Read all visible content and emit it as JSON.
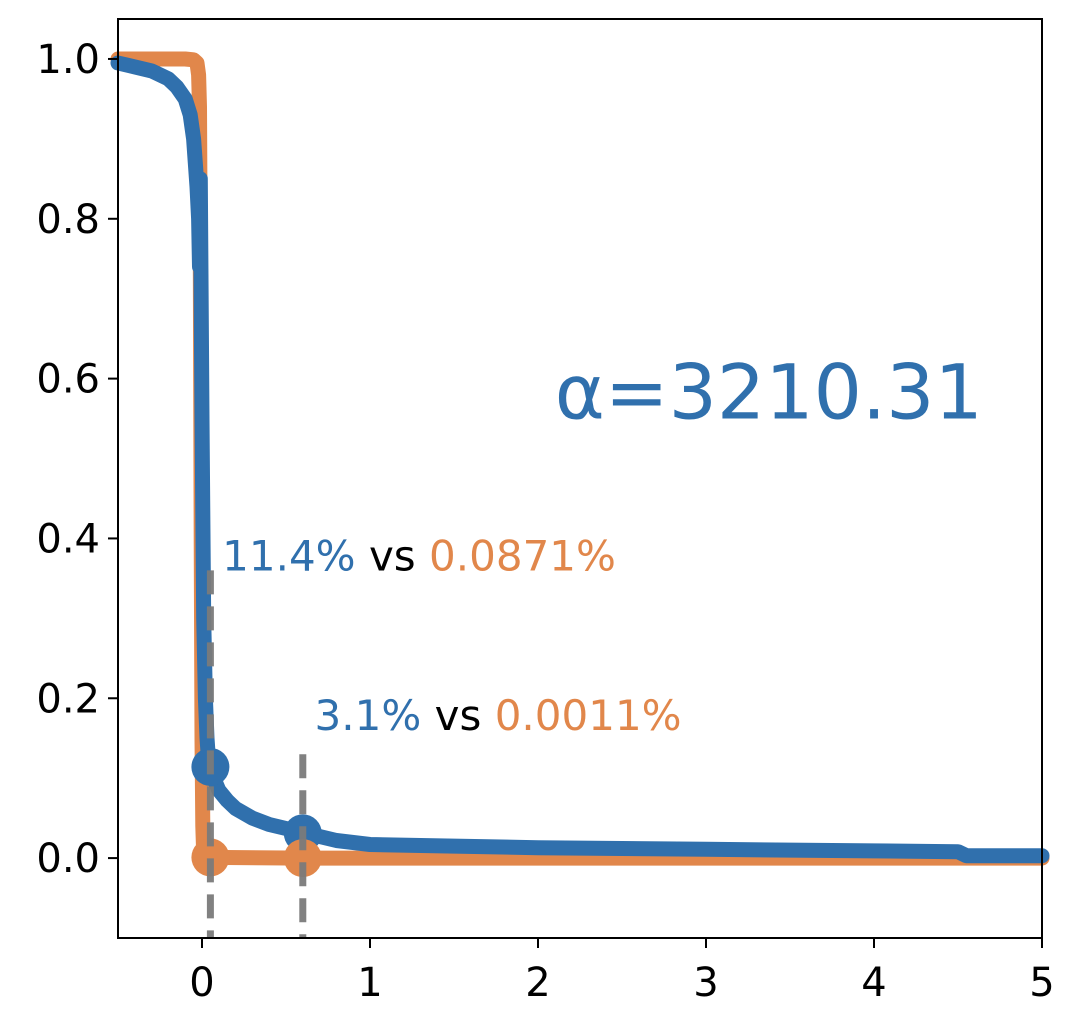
{
  "chart_data": {
    "type": "line",
    "title": "",
    "xlabel": "",
    "ylabel": "",
    "xlim": [
      -0.5,
      5
    ],
    "ylim": [
      -0.1,
      1.05
    ],
    "grid": false,
    "x_ticks": [
      0,
      1,
      2,
      3,
      4,
      5
    ],
    "x_tick_labels": [
      "0",
      "1",
      "2",
      "3",
      "4",
      "5"
    ],
    "y_ticks": [
      0.0,
      0.2,
      0.4,
      0.6,
      0.8,
      1.0
    ],
    "y_tick_labels": [
      "0.0",
      "0.2",
      "0.4",
      "0.6",
      "0.8",
      "1.0"
    ],
    "colors": {
      "blue": "#3070ad",
      "orange": "#e1874b",
      "dashed": "#7a7a7a"
    },
    "series": [
      {
        "color": "#3070ad",
        "x": [
          -0.5,
          -0.4,
          -0.3,
          -0.2,
          -0.15,
          -0.1,
          -0.07,
          -0.05,
          -0.04,
          -0.03,
          -0.02,
          -0.015,
          -0.01,
          0.0,
          0.01,
          0.02,
          0.03,
          0.04,
          0.05,
          0.07,
          0.1,
          0.15,
          0.2,
          0.3,
          0.4,
          0.5,
          0.6,
          0.7,
          0.8,
          1.0,
          1.5,
          2.0,
          2.5,
          3.0,
          3.5,
          4.0,
          4.5,
          4.55,
          5.0
        ],
        "y": [
          0.995,
          0.99,
          0.985,
          0.975,
          0.965,
          0.95,
          0.93,
          0.9,
          0.87,
          0.84,
          0.8,
          0.74,
          0.85,
          0.55,
          0.3,
          0.2,
          0.15,
          0.12,
          0.114,
          0.1,
          0.085,
          0.072,
          0.062,
          0.05,
          0.042,
          0.037,
          0.031,
          0.027,
          0.022,
          0.017,
          0.015,
          0.013,
          0.012,
          0.011,
          0.01,
          0.009,
          0.008,
          0.003,
          0.003
        ]
      },
      {
        "color": "#e1874b",
        "x": [
          -0.5,
          -0.1,
          -0.05,
          -0.03,
          -0.02,
          -0.015,
          -0.01,
          -0.005,
          0.0,
          0.005,
          0.01,
          0.02,
          0.05,
          0.6,
          1.0,
          2.0,
          3.0,
          4.0,
          5.0
        ],
        "y": [
          1.0,
          1.0,
          0.999,
          0.995,
          0.98,
          0.94,
          0.75,
          0.4,
          0.15,
          0.04,
          0.005,
          0.001,
          0.00087,
          1.1e-05,
          0.0,
          0.0,
          0.0,
          0.0,
          0.0
        ]
      }
    ],
    "markers": [
      {
        "x": 0.05,
        "y": 0.114,
        "color": "#3070ad"
      },
      {
        "x": 0.6,
        "y": 0.031,
        "color": "#3070ad"
      },
      {
        "x": 0.05,
        "y": 0.00087,
        "color": "#e1874b"
      },
      {
        "x": 0.6,
        "y": 1.1e-05,
        "color": "#e1874b"
      }
    ],
    "vlines": [
      {
        "x": 0.05,
        "y_top": 0.36
      },
      {
        "x": 0.6,
        "y_top": 0.13
      }
    ],
    "annotations": [
      {
        "x": 0.12,
        "y": 0.36,
        "blue_text": "11.4%",
        "mid_text": " vs ",
        "orange_text": "0.0871%"
      },
      {
        "x": 0.67,
        "y": 0.16,
        "blue_text": "3.1%",
        "mid_text": " vs ",
        "orange_text": "0.0011%"
      }
    ],
    "alpha_label": {
      "x": 2.1,
      "y": 0.55,
      "text": "α=3210.31"
    }
  }
}
